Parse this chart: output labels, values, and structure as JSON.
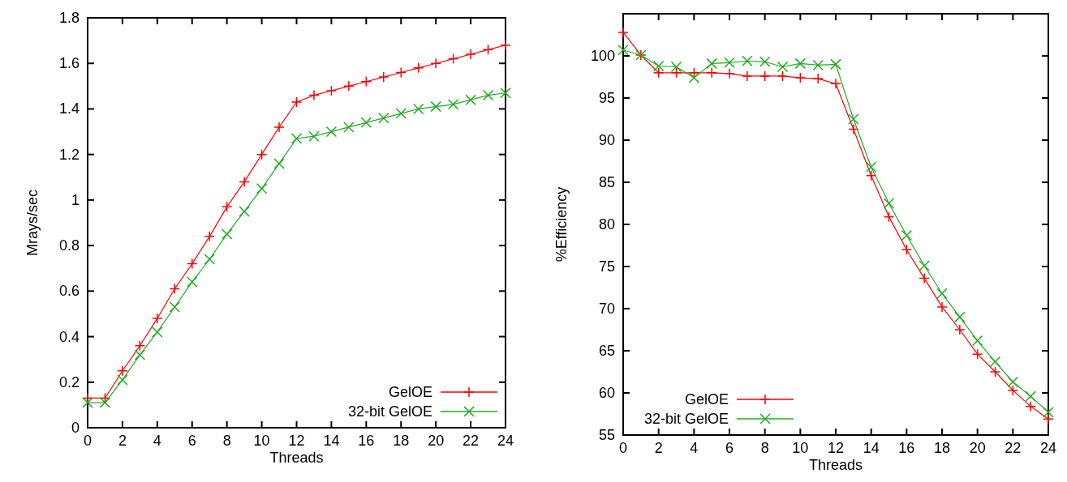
{
  "chart_data": [
    {
      "type": "line",
      "xlabel": "Threads",
      "ylabel": "Mrays/sec",
      "x": [
        0,
        1,
        2,
        3,
        4,
        5,
        6,
        7,
        8,
        9,
        10,
        11,
        12,
        13,
        14,
        15,
        16,
        17,
        18,
        19,
        20,
        21,
        22,
        23,
        24
      ],
      "xlim": [
        0,
        24
      ],
      "xticks": [
        0,
        2,
        4,
        6,
        8,
        10,
        12,
        14,
        16,
        18,
        20,
        22,
        24
      ],
      "ylim": [
        0,
        1.8
      ],
      "yticks": [
        0,
        {
          "value": 0.2,
          "label": "0.2"
        },
        {
          "value": 0.4,
          "label": "0.4"
        },
        {
          "value": 0.6,
          "label": "0.6"
        },
        {
          "value": 0.8,
          "label": "0.8"
        },
        1,
        {
          "value": 1.2,
          "label": "1.2"
        },
        {
          "value": 1.4,
          "label": "1.4"
        },
        {
          "value": 1.6,
          "label": "1.6"
        },
        {
          "value": 1.8,
          "label": "1.8"
        }
      ],
      "marker": "cross",
      "legend": "bottom right",
      "grid": false,
      "series": [
        {
          "name": "GelOE",
          "color": "#ff0000",
          "values": [
            0.13,
            0.13,
            0.25,
            0.36,
            0.48,
            0.61,
            0.72,
            0.84,
            0.97,
            1.08,
            1.2,
            1.32,
            1.43,
            1.46,
            1.48,
            1.5,
            1.52,
            1.54,
            1.56,
            1.58,
            1.6,
            1.62,
            1.64,
            1.66,
            1.68
          ]
        },
        {
          "name": "32-bit GelOE",
          "color": "#22aa22",
          "values": [
            0.11,
            0.11,
            0.21,
            0.32,
            0.42,
            0.53,
            0.64,
            0.74,
            0.85,
            0.95,
            1.05,
            1.16,
            1.27,
            1.28,
            1.3,
            1.32,
            1.34,
            1.36,
            1.38,
            1.4,
            1.41,
            1.42,
            1.44,
            1.46,
            1.47
          ]
        }
      ]
    },
    {
      "type": "line",
      "xlabel": "Threads",
      "ylabel": "%Efficiency",
      "x": [
        0,
        1,
        2,
        3,
        4,
        5,
        6,
        7,
        8,
        9,
        10,
        11,
        12,
        13,
        14,
        15,
        16,
        17,
        18,
        19,
        20,
        21,
        22,
        23,
        24
      ],
      "xlim": [
        0,
        24
      ],
      "xticks": [
        0,
        2,
        4,
        6,
        8,
        10,
        12,
        14,
        16,
        18,
        20,
        22,
        24
      ],
      "ylim": [
        55,
        105
      ],
      "yticks": [
        55,
        60,
        65,
        70,
        75,
        80,
        85,
        90,
        95,
        100
      ],
      "marker": "cross",
      "legend": "bottom left",
      "grid": false,
      "series": [
        {
          "name": "GelOE",
          "color": "#ff0000",
          "values": [
            102.8,
            100.1,
            98,
            98,
            98,
            98,
            97.9,
            97.6,
            97.6,
            97.6,
            97.4,
            97.3,
            96.7,
            91.3,
            85.8,
            80.9,
            77,
            73.6,
            70.2,
            67.5,
            64.6,
            62.5,
            60.3,
            58.4,
            56.9
          ]
        },
        {
          "name": "32-bit GelOE",
          "color": "#22aa22",
          "values": [
            100.7,
            100.1,
            98.8,
            98.7,
            97.4,
            99.1,
            99.2,
            99.4,
            99.3,
            98.7,
            99.1,
            98.9,
            99,
            92.5,
            86.8,
            82.5,
            78.7,
            75.1,
            71.8,
            69,
            66.2,
            63.7,
            61.3,
            59.6,
            57.7
          ]
        }
      ]
    }
  ]
}
